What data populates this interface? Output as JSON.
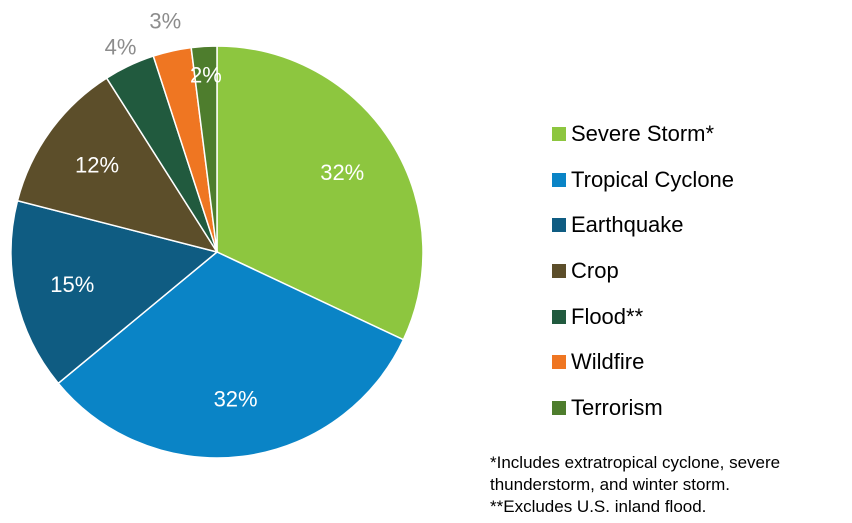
{
  "chart_data": {
    "type": "pie",
    "slices": [
      {
        "label": "Severe Storm*",
        "value": 32,
        "display": "32%",
        "color": "#8dc63f",
        "label_color": "#ffffff"
      },
      {
        "label": "Tropical Cyclone",
        "value": 32,
        "display": "32%",
        "color": "#0a84c6",
        "label_color": "#ffffff"
      },
      {
        "label": "Earthquake",
        "value": 15,
        "display": "15%",
        "color": "#0f5c82",
        "label_color": "#ffffff"
      },
      {
        "label": "Crop",
        "value": 12,
        "display": "12%",
        "color": "#5c4e2a",
        "label_color": "#ffffff"
      },
      {
        "label": "Flood**",
        "value": 4,
        "display": "4%",
        "color": "#215a3e",
        "label_color": "#8c8c8c"
      },
      {
        "label": "Wildfire",
        "value": 3,
        "display": "3%",
        "color": "#ef7622",
        "label_color": "#8c8c8c"
      },
      {
        "label": "Terrorism",
        "value": 2,
        "display": "2%",
        "color": "#4e7d2d",
        "label_color": "#ffffff"
      }
    ],
    "legend_position": "right"
  },
  "footnotes": {
    "line1": "*Includes extratropical cyclone, severe",
    "line2": "thunderstorm, and winter storm.",
    "line3": "**Excludes U.S. inland flood."
  }
}
